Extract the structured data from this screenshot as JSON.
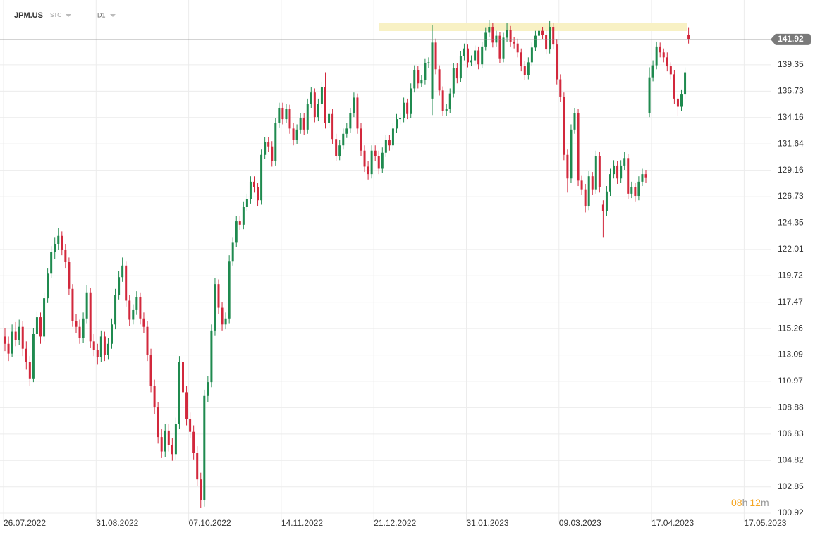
{
  "chart_data": {
    "type": "candlestick",
    "symbol": "JPM.US",
    "market": "STC",
    "interval": "D1",
    "log": true,
    "grid": true,
    "up_color": "#1f8a4f",
    "down_color": "#d2283c",
    "ylim": [
      100.31,
      146.0
    ],
    "yticks": [
      139.35,
      136.73,
      134.16,
      131.64,
      129.16,
      126.73,
      124.35,
      122.01,
      119.72,
      117.47,
      115.26,
      113.09,
      110.97,
      108.88,
      106.83,
      104.82,
      102.85,
      100.92
    ],
    "countdown": {
      "hours": "08",
      "hours_unit": "h",
      "minutes": "12",
      "minutes_unit": "m"
    },
    "future_label": "17.05.2023",
    "categories": [
      "26.07.2022",
      null,
      null,
      null,
      null,
      null,
      null,
      null,
      null,
      null,
      null,
      null,
      null,
      null,
      null,
      null,
      null,
      null,
      null,
      null,
      null,
      null,
      null,
      null,
      null,
      null,
      "31.08.2022",
      null,
      null,
      null,
      null,
      null,
      null,
      null,
      null,
      null,
      null,
      null,
      null,
      null,
      null,
      null,
      null,
      null,
      null,
      null,
      null,
      null,
      null,
      null,
      null,
      null,
      "07.10.2022",
      null,
      null,
      null,
      null,
      null,
      null,
      null,
      null,
      null,
      null,
      null,
      null,
      null,
      null,
      null,
      null,
      null,
      null,
      null,
      null,
      null,
      null,
      null,
      null,
      null,
      "14.11.2022",
      null,
      null,
      null,
      null,
      null,
      null,
      null,
      null,
      null,
      null,
      null,
      null,
      null,
      null,
      null,
      null,
      null,
      null,
      null,
      null,
      null,
      null,
      null,
      null,
      null,
      "21.12.2022",
      null,
      null,
      null,
      null,
      null,
      null,
      null,
      null,
      null,
      null,
      null,
      null,
      null,
      null,
      null,
      null,
      null,
      null,
      null,
      null,
      null,
      null,
      null,
      null,
      null,
      "31.01.2023",
      null,
      null,
      null,
      null,
      null,
      null,
      null,
      null,
      null,
      null,
      null,
      null,
      null,
      null,
      null,
      null,
      null,
      null,
      null,
      null,
      null,
      null,
      null,
      null,
      null,
      "09.03.2023",
      null,
      null,
      null,
      null,
      null,
      null,
      null,
      null,
      null,
      null,
      null,
      null,
      null,
      null,
      null,
      null,
      null,
      null,
      null,
      null,
      null,
      null,
      null,
      null,
      null,
      "17.04.2023",
      null,
      null,
      null,
      null,
      null,
      null,
      null,
      null,
      null,
      null
    ],
    "ohlc": [
      [
        114.6,
        115.3,
        113.4,
        114.0
      ],
      [
        114.0,
        114.6,
        112.6,
        113.2
      ],
      [
        113.2,
        115.6,
        112.9,
        115.0
      ],
      [
        115.0,
        115.8,
        113.8,
        114.3
      ],
      [
        114.3,
        116.0,
        113.9,
        115.4
      ],
      [
        115.4,
        115.9,
        113.0,
        113.6
      ],
      [
        113.6,
        114.2,
        111.9,
        112.5
      ],
      [
        112.5,
        113.0,
        110.6,
        111.2
      ],
      [
        111.2,
        115.3,
        110.9,
        114.8
      ],
      [
        114.8,
        116.7,
        114.3,
        116.2
      ],
      [
        116.2,
        116.6,
        114.0,
        114.6
      ],
      [
        114.6,
        118.3,
        114.2,
        117.8
      ],
      [
        117.8,
        120.4,
        117.4,
        119.9
      ],
      [
        119.9,
        122.3,
        119.5,
        121.8
      ],
      [
        121.8,
        123.1,
        121.2,
        122.5
      ],
      [
        122.5,
        123.9,
        122.0,
        123.2
      ],
      [
        123.2,
        123.6,
        121.5,
        122.0
      ],
      [
        122.0,
        122.5,
        120.4,
        120.9
      ],
      [
        120.9,
        121.3,
        118.1,
        118.6
      ],
      [
        118.6,
        119.0,
        115.4,
        115.9
      ],
      [
        115.9,
        116.5,
        114.9,
        115.4
      ],
      [
        115.4,
        116.0,
        114.0,
        114.5
      ],
      [
        114.5,
        116.6,
        114.1,
        116.1
      ],
      [
        116.1,
        118.9,
        115.7,
        118.3
      ],
      [
        118.3,
        118.7,
        113.7,
        114.2
      ],
      [
        114.2,
        114.8,
        113.0,
        113.5
      ],
      [
        113.5,
        114.0,
        112.3,
        112.9
      ],
      [
        112.9,
        115.1,
        112.5,
        114.6
      ],
      [
        114.6,
        115.0,
        112.6,
        113.1
      ],
      [
        113.1,
        114.5,
        112.7,
        114.0
      ],
      [
        114.0,
        116.1,
        113.6,
        115.6
      ],
      [
        115.6,
        118.6,
        115.2,
        118.1
      ],
      [
        118.1,
        120.1,
        117.7,
        119.6
      ],
      [
        119.6,
        121.3,
        119.2,
        120.6
      ],
      [
        120.6,
        121.0,
        117.1,
        117.6
      ],
      [
        117.6,
        118.1,
        115.5,
        116.0
      ],
      [
        116.0,
        117.3,
        115.6,
        116.8
      ],
      [
        116.8,
        118.4,
        116.4,
        117.9
      ],
      [
        117.9,
        118.3,
        115.6,
        116.1
      ],
      [
        116.1,
        116.6,
        114.9,
        115.4
      ],
      [
        115.4,
        115.9,
        112.6,
        113.1
      ],
      [
        113.1,
        113.6,
        110.1,
        110.6
      ],
      [
        110.6,
        111.1,
        108.4,
        108.9
      ],
      [
        108.9,
        109.3,
        106.1,
        106.6
      ],
      [
        106.6,
        107.2,
        105.0,
        105.5
      ],
      [
        105.5,
        107.6,
        105.1,
        107.1
      ],
      [
        107.1,
        107.6,
        105.5,
        106.0
      ],
      [
        106.0,
        106.5,
        104.8,
        105.3
      ],
      [
        105.3,
        108.1,
        104.9,
        107.6
      ],
      [
        107.6,
        113.0,
        107.2,
        112.5
      ],
      [
        112.5,
        112.9,
        109.6,
        110.1
      ],
      [
        110.1,
        110.6,
        107.5,
        108.0
      ],
      [
        108.0,
        108.5,
        106.5,
        107.0
      ],
      [
        107.0,
        107.5,
        104.9,
        105.4
      ],
      [
        105.4,
        105.9,
        102.9,
        103.4
      ],
      [
        103.4,
        103.9,
        101.3,
        101.9
      ],
      [
        101.9,
        110.3,
        101.4,
        109.8
      ],
      [
        109.8,
        111.4,
        109.3,
        110.9
      ],
      [
        110.9,
        115.6,
        110.5,
        115.1
      ],
      [
        115.1,
        119.5,
        114.7,
        119.0
      ],
      [
        119.0,
        119.4,
        116.5,
        117.0
      ],
      [
        117.0,
        117.5,
        115.1,
        115.6
      ],
      [
        115.6,
        116.6,
        115.2,
        116.1
      ],
      [
        116.1,
        121.5,
        115.7,
        121.0
      ],
      [
        121.0,
        123.1,
        120.6,
        122.6
      ],
      [
        122.6,
        125.0,
        122.2,
        124.5
      ],
      [
        124.5,
        125.0,
        123.7,
        124.2
      ],
      [
        124.2,
        126.3,
        123.8,
        125.8
      ],
      [
        125.8,
        127.0,
        125.4,
        126.5
      ],
      [
        126.5,
        128.6,
        126.1,
        128.1
      ],
      [
        128.1,
        128.6,
        127.1,
        127.6
      ],
      [
        127.6,
        128.0,
        125.9,
        126.4
      ],
      [
        126.4,
        131.1,
        126.0,
        130.6
      ],
      [
        130.6,
        132.3,
        130.2,
        131.8
      ],
      [
        131.8,
        132.3,
        130.9,
        131.4
      ],
      [
        131.4,
        131.9,
        129.5,
        130.0
      ],
      [
        130.0,
        134.1,
        129.6,
        133.6
      ],
      [
        133.6,
        135.6,
        133.2,
        135.1
      ],
      [
        135.1,
        135.6,
        133.5,
        134.0
      ],
      [
        134.0,
        135.5,
        133.6,
        135.0
      ],
      [
        135.0,
        135.4,
        132.6,
        133.1
      ],
      [
        133.1,
        133.6,
        131.5,
        132.0
      ],
      [
        132.0,
        133.5,
        131.6,
        133.0
      ],
      [
        133.0,
        134.6,
        132.6,
        134.1
      ],
      [
        134.1,
        134.6,
        132.5,
        133.0
      ],
      [
        133.0,
        136.0,
        132.6,
        135.5
      ],
      [
        135.5,
        137.1,
        135.1,
        136.6
      ],
      [
        136.6,
        137.0,
        133.7,
        134.2
      ],
      [
        134.2,
        136.0,
        133.8,
        135.5
      ],
      [
        135.5,
        137.6,
        135.1,
        137.1
      ],
      [
        137.1,
        138.6,
        133.1,
        133.6
      ],
      [
        133.6,
        135.0,
        133.2,
        134.5
      ],
      [
        134.5,
        135.0,
        131.6,
        132.1
      ],
      [
        132.1,
        132.6,
        130.0,
        130.5
      ],
      [
        130.5,
        132.0,
        130.1,
        131.5
      ],
      [
        131.5,
        133.1,
        131.1,
        132.6
      ],
      [
        132.6,
        133.6,
        132.2,
        133.1
      ],
      [
        133.1,
        135.1,
        132.7,
        134.6
      ],
      [
        134.6,
        136.6,
        134.2,
        136.1
      ],
      [
        136.1,
        136.5,
        132.6,
        133.1
      ],
      [
        133.1,
        133.6,
        130.5,
        131.0
      ],
      [
        131.0,
        131.5,
        129.0,
        129.5
      ],
      [
        129.5,
        130.0,
        128.3,
        128.8
      ],
      [
        128.8,
        131.5,
        128.4,
        131.0
      ],
      [
        131.0,
        131.5,
        130.0,
        130.5
      ],
      [
        130.5,
        131.0,
        128.8,
        129.3
      ],
      [
        129.3,
        131.3,
        128.9,
        130.8
      ],
      [
        130.8,
        132.5,
        130.4,
        132.0
      ],
      [
        132.0,
        132.5,
        131.0,
        131.5
      ],
      [
        131.5,
        133.6,
        131.1,
        133.1
      ],
      [
        133.1,
        134.5,
        132.7,
        134.0
      ],
      [
        134.0,
        134.6,
        133.5,
        134.1
      ],
      [
        134.1,
        136.1,
        133.7,
        135.6
      ],
      [
        135.6,
        136.0,
        134.0,
        134.5
      ],
      [
        134.5,
        137.5,
        134.1,
        137.0
      ],
      [
        137.0,
        139.3,
        136.6,
        138.8
      ],
      [
        138.8,
        139.2,
        137.0,
        137.5
      ],
      [
        137.5,
        138.3,
        137.1,
        137.8
      ],
      [
        137.8,
        140.0,
        137.4,
        139.5
      ],
      [
        139.5,
        140.1,
        139.0,
        139.6
      ],
      [
        136.0,
        143.4,
        134.4,
        141.6
      ],
      [
        141.6,
        142.0,
        138.4,
        138.9
      ],
      [
        138.9,
        139.3,
        136.3,
        136.8
      ],
      [
        136.8,
        137.2,
        134.3,
        134.8
      ],
      [
        134.8,
        135.5,
        134.3,
        135.0
      ],
      [
        135.0,
        137.0,
        134.6,
        136.5
      ],
      [
        136.5,
        139.5,
        136.1,
        139.0
      ],
      [
        139.0,
        139.5,
        137.5,
        138.0
      ],
      [
        138.0,
        140.7,
        137.6,
        140.2
      ],
      [
        140.2,
        141.5,
        139.8,
        141.0
      ],
      [
        141.0,
        141.4,
        139.1,
        139.6
      ],
      [
        139.6,
        140.3,
        139.2,
        139.8
      ],
      [
        139.8,
        141.3,
        139.4,
        140.8
      ],
      [
        140.8,
        141.2,
        138.9,
        139.4
      ],
      [
        139.4,
        141.7,
        139.0,
        141.2
      ],
      [
        141.2,
        143.1,
        140.8,
        142.6
      ],
      [
        142.6,
        143.9,
        142.2,
        143.2
      ],
      [
        143.2,
        143.6,
        141.1,
        141.6
      ],
      [
        141.6,
        142.8,
        141.2,
        142.3
      ],
      [
        142.3,
        142.7,
        139.5,
        140.0
      ],
      [
        140.0,
        142.6,
        139.6,
        142.1
      ],
      [
        142.1,
        143.6,
        141.7,
        142.9
      ],
      [
        142.9,
        143.3,
        141.2,
        141.7
      ],
      [
        141.7,
        142.2,
        141.0,
        141.5
      ],
      [
        141.5,
        142.0,
        140.1,
        140.6
      ],
      [
        140.6,
        141.0,
        138.7,
        139.2
      ],
      [
        139.2,
        139.7,
        137.8,
        138.3
      ],
      [
        138.3,
        140.1,
        137.9,
        139.6
      ],
      [
        139.6,
        141.6,
        139.2,
        141.1
      ],
      [
        141.1,
        142.8,
        140.7,
        142.3
      ],
      [
        142.3,
        143.5,
        141.9,
        142.8
      ],
      [
        142.8,
        143.2,
        141.9,
        142.4
      ],
      [
        142.4,
        142.9,
        140.4,
        140.9
      ],
      [
        140.9,
        143.8,
        140.5,
        143.2
      ],
      [
        143.2,
        143.6,
        140.9,
        141.4
      ],
      [
        141.4,
        141.9,
        137.4,
        137.9
      ],
      [
        137.9,
        138.4,
        135.7,
        136.2
      ],
      [
        136.2,
        136.6,
        130.1,
        130.6
      ],
      [
        130.6,
        131.1,
        127.1,
        128.4
      ],
      [
        128.4,
        133.5,
        128.0,
        133.0
      ],
      [
        133.0,
        135.1,
        132.6,
        134.6
      ],
      [
        134.6,
        135.0,
        127.7,
        128.2
      ],
      [
        128.2,
        128.7,
        126.9,
        127.4
      ],
      [
        127.4,
        127.9,
        125.3,
        125.9
      ],
      [
        125.9,
        129.1,
        125.5,
        128.6
      ],
      [
        128.6,
        129.0,
        126.9,
        127.4
      ],
      [
        127.4,
        131.0,
        127.0,
        130.5
      ],
      [
        130.5,
        130.9,
        127.1,
        127.6
      ],
      [
        126.0,
        126.4,
        123.1,
        125.4
      ],
      [
        125.4,
        127.7,
        125.0,
        127.2
      ],
      [
        127.2,
        129.3,
        126.8,
        128.8
      ],
      [
        128.8,
        130.1,
        128.4,
        129.6
      ],
      [
        129.6,
        130.0,
        127.9,
        128.4
      ],
      [
        128.4,
        130.1,
        128.0,
        129.6
      ],
      [
        129.6,
        130.9,
        129.2,
        130.3
      ],
      [
        130.3,
        130.7,
        126.5,
        127.0
      ],
      [
        127.0,
        128.1,
        126.6,
        127.6
      ],
      [
        127.6,
        128.0,
        126.3,
        126.8
      ],
      [
        126.8,
        128.6,
        126.4,
        128.1
      ],
      [
        128.1,
        129.3,
        127.7,
        128.8
      ],
      [
        128.8,
        129.2,
        128.0,
        128.5
      ],
      [
        134.6,
        139.1,
        134.2,
        138.1
      ],
      [
        138.1,
        139.8,
        137.7,
        139.3
      ],
      [
        139.3,
        141.7,
        138.9,
        141.2
      ],
      [
        141.2,
        141.6,
        140.1,
        140.6
      ],
      [
        140.6,
        141.0,
        139.6,
        140.1
      ],
      [
        140.1,
        140.6,
        138.7,
        139.2
      ],
      [
        139.2,
        139.6,
        137.9,
        138.4
      ],
      [
        138.4,
        138.8,
        135.5,
        136.0
      ],
      [
        136.0,
        136.4,
        134.3,
        135.2
      ],
      [
        135.2,
        136.9,
        134.8,
        136.4
      ],
      [
        136.4,
        139.1,
        136.0,
        138.6
      ],
      [
        142.4,
        143.1,
        141.5,
        141.92
      ]
    ]
  }
}
